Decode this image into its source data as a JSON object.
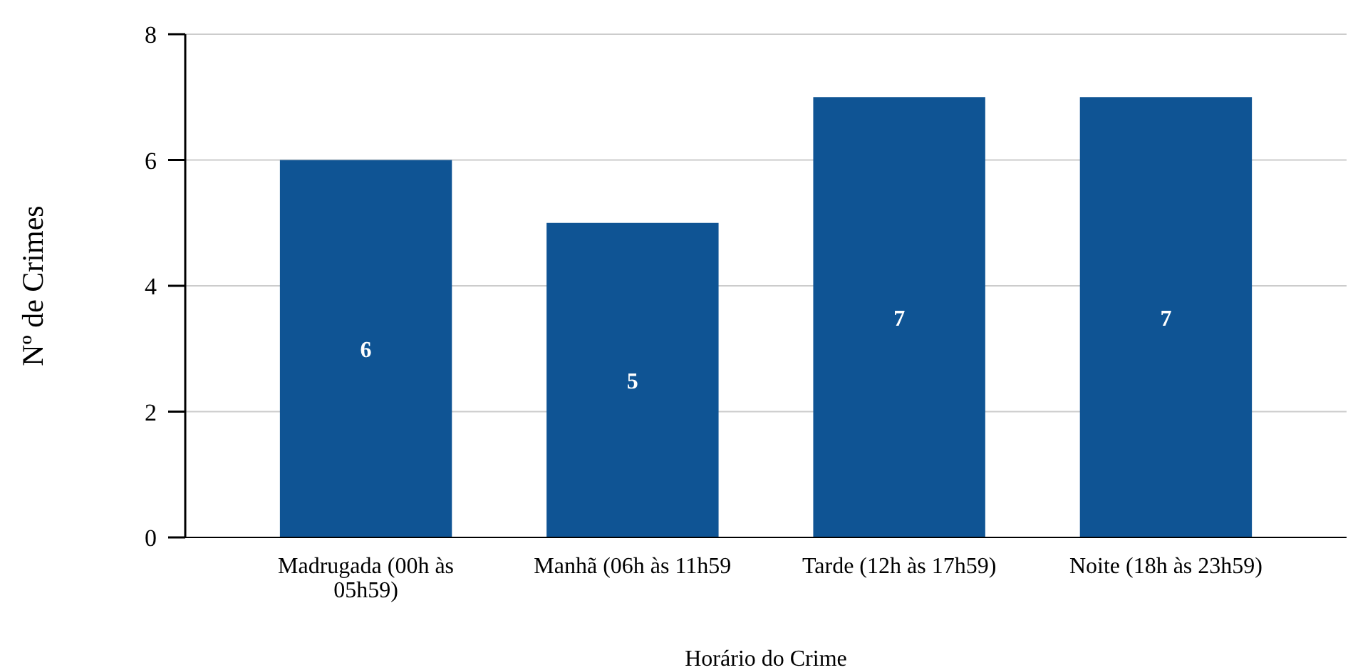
{
  "chart_data": {
    "type": "bar",
    "xlabel": "Horário do Crime",
    "ylabel": "Nº de Crimes",
    "categories": [
      "Madrugada (00h às 05h59)",
      "Manhã (06h às 11h59",
      "Tarde (12h às 17h59)",
      "Noite (18h às 23h59)"
    ],
    "values": [
      6,
      5,
      7,
      7
    ],
    "color": "#0f5494",
    "ylim": [
      0,
      8
    ],
    "yticks": [
      0,
      2,
      4,
      6,
      8
    ],
    "grid": "y",
    "data_labels": true
  }
}
